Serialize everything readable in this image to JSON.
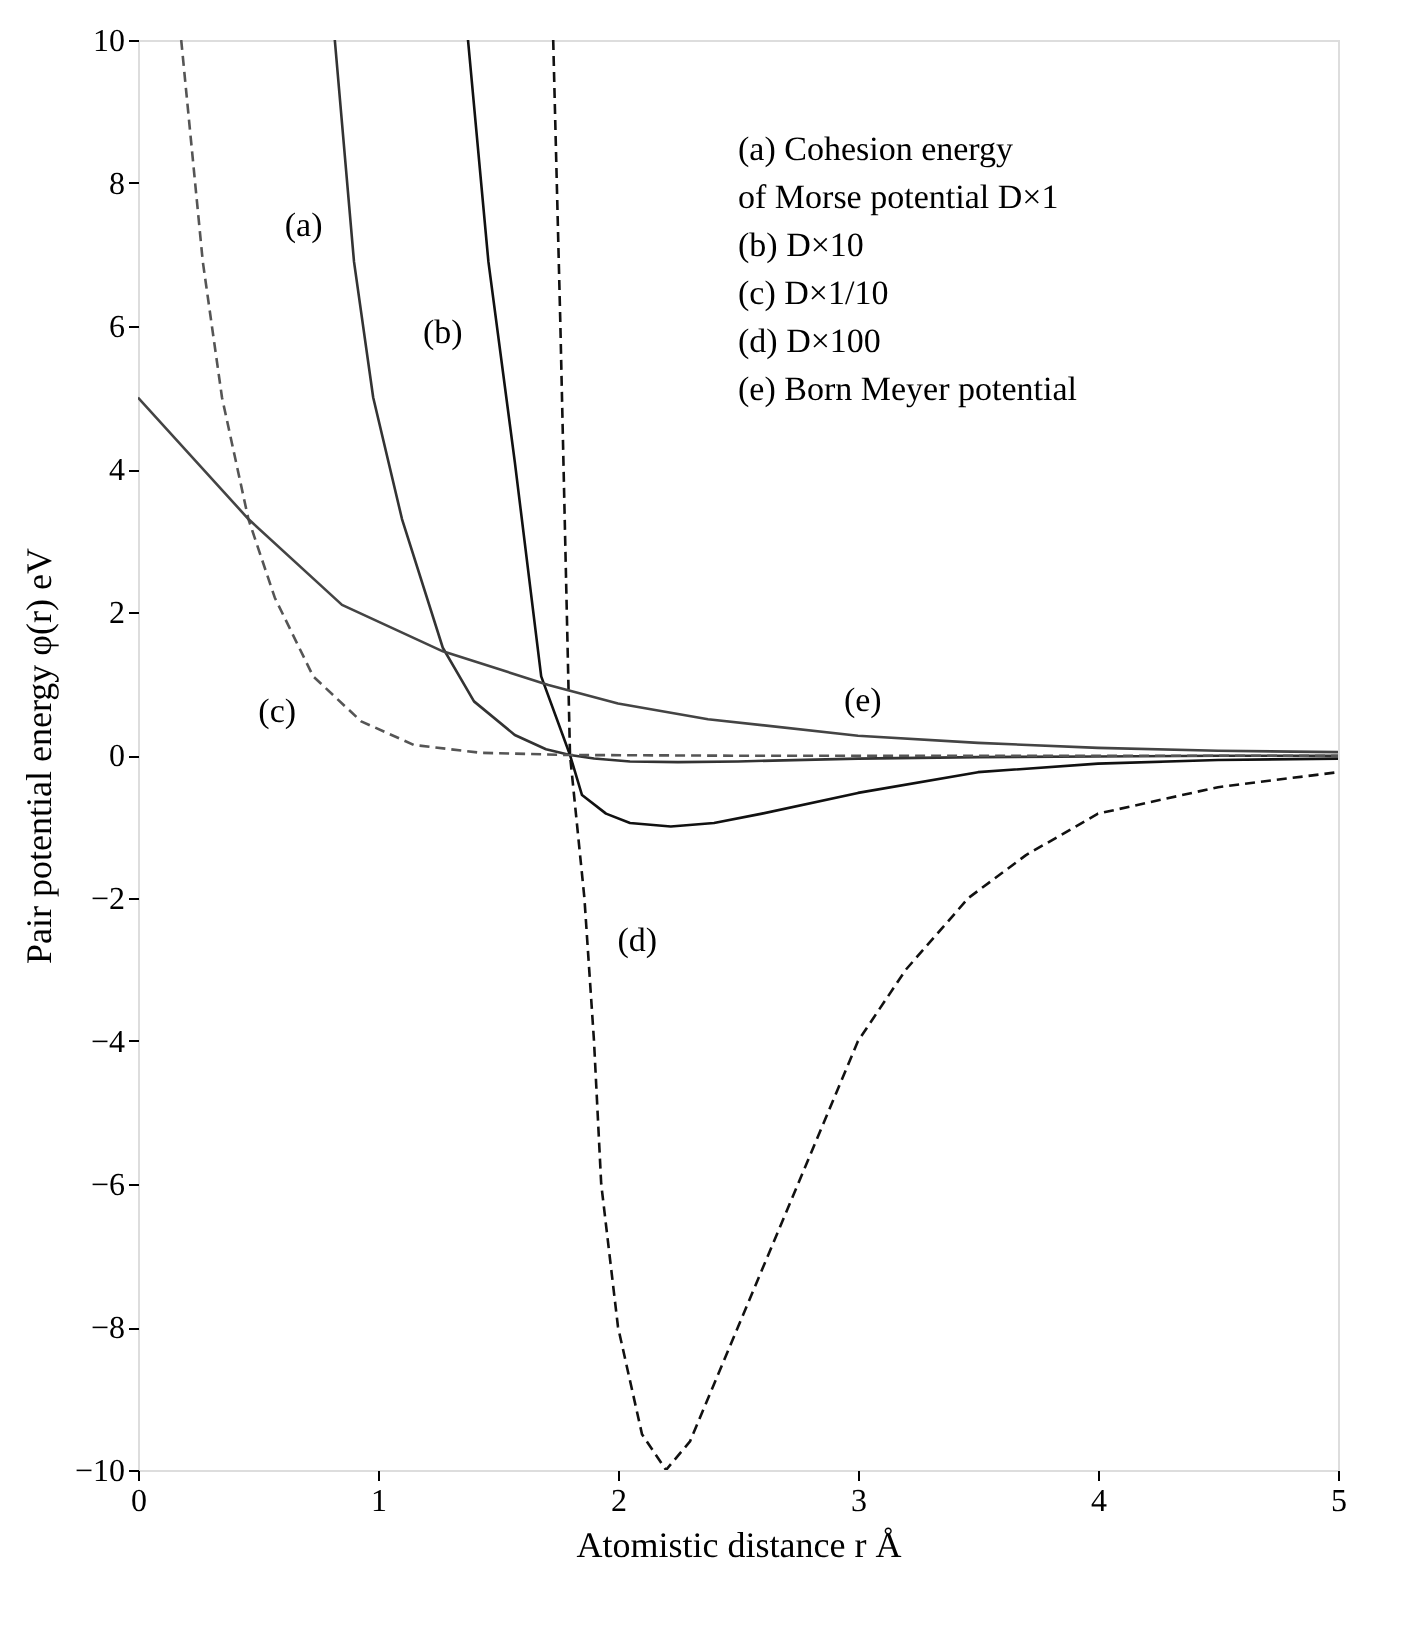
{
  "chart_data": {
    "type": "line",
    "xlabel": "Atomistic distance  r    Å",
    "ylabel": "Pair potential energy  φ(r)  eV",
    "xlim": [
      0,
      5
    ],
    "ylim": [
      -10,
      10
    ],
    "xticks": [
      0,
      1,
      2,
      3,
      4,
      5
    ],
    "yticks": [
      -10,
      -8,
      -6,
      -4,
      -2,
      0,
      2,
      4,
      6,
      8,
      10
    ],
    "grid": false,
    "marker": "none",
    "series": [
      {
        "color": "#333333",
        "line_style": "solid",
        "x": [
          0.82,
          0.9,
          0.98,
          1.1,
          1.27,
          1.4,
          1.57,
          1.7,
          1.8,
          1.9,
          2.05,
          2.25,
          2.5,
          3.0,
          3.5,
          4.0,
          4.5,
          5.0
        ],
        "values": [
          10,
          6.9,
          5.0,
          3.3,
          1.5,
          0.75,
          0.28,
          0.08,
          0,
          -0.05,
          -0.09,
          -0.1,
          -0.09,
          -0.05,
          -0.03,
          -0.02,
          -0.01,
          -0.01
        ]
      },
      {
        "color": "#111111",
        "line_style": "solid",
        "x": [
          1.375,
          1.46,
          1.57,
          1.68,
          1.8,
          1.85,
          1.95,
          2.05,
          2.22,
          2.4,
          2.6,
          3.0,
          3.5,
          4.0,
          4.5,
          5.0
        ],
        "values": [
          10,
          6.9,
          4.1,
          1.1,
          0,
          -0.56,
          -0.82,
          -0.95,
          -1.0,
          -0.95,
          -0.82,
          -0.53,
          -0.24,
          -0.12,
          -0.07,
          -0.05
        ]
      },
      {
        "color": "#555555",
        "line_style": "dashed",
        "x": [
          0.18,
          0.27,
          0.35,
          0.46,
          0.57,
          0.73,
          0.93,
          1.15,
          1.43,
          1.8,
          2.5,
          3.5,
          5.0
        ],
        "values": [
          10,
          6.9,
          5.0,
          3.3,
          2.2,
          1.1,
          0.47,
          0.14,
          0.03,
          0,
          -0.01,
          -0.01,
          -0.01
        ]
      },
      {
        "color": "#111111",
        "line_style": "dashed",
        "x": [
          1.73,
          1.76,
          1.78,
          1.8,
          1.86,
          1.9,
          1.93,
          2.0,
          2.1,
          2.2,
          2.3,
          2.4,
          2.5,
          2.6,
          2.75,
          2.9,
          3.0,
          3.2,
          3.46,
          3.7,
          4.0,
          4.5,
          5.0
        ],
        "values": [
          10,
          6,
          3,
          0,
          -2,
          -4,
          -6,
          -8,
          -9.5,
          -10,
          -9.6,
          -8.8,
          -8,
          -7.2,
          -6,
          -4.8,
          -4,
          -3,
          -2,
          -1.4,
          -0.82,
          -0.45,
          -0.24
        ]
      },
      {
        "color": "#444444",
        "line_style": "solid",
        "x": [
          0,
          0.46,
          0.85,
          1.27,
          1.71,
          2.0,
          2.375,
          3.0,
          3.5,
          4.0,
          4.5,
          5.0
        ],
        "values": [
          5,
          3.3,
          2.1,
          1.45,
          0.98,
          0.72,
          0.5,
          0.27,
          0.17,
          0.1,
          0.06,
          0.04
        ]
      }
    ],
    "annotations": [
      "(a)",
      "(b)",
      "(c)",
      "(d)",
      "(e)",
      "(a)  Cohesion energy",
      "      of Morse potential D×1",
      "(b)  D×10",
      "(c)  D×1/10",
      "(d)  D×100",
      "(e)  Born Meyer potential"
    ]
  }
}
